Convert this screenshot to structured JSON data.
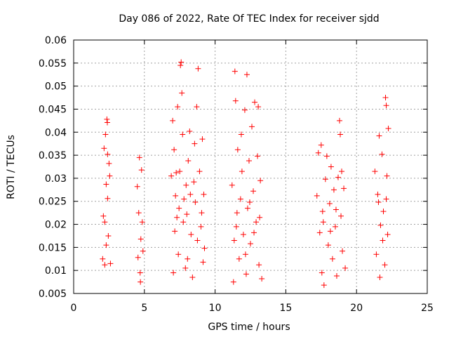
{
  "chart_data": {
    "type": "scatter",
    "title": "Day 086 of 2022, Rate Of TEC Index for receiver sjdd",
    "xlabel": "GPS time / hours",
    "ylabel": "ROTI / TECUs",
    "xlim": [
      0,
      25
    ],
    "ylim": [
      0.005,
      0.06
    ],
    "xticks": [
      0,
      5,
      10,
      15,
      20,
      25
    ],
    "xtick_labels": [
      "0",
      "5",
      "10",
      "15",
      "20",
      "25"
    ],
    "yticks": [
      0.005,
      0.01,
      0.015,
      0.02,
      0.025,
      0.03,
      0.035,
      0.04,
      0.045,
      0.05,
      0.055,
      0.06
    ],
    "ytick_labels": [
      "0.005",
      "0.01",
      "0.015",
      "0.02",
      "0.025",
      "0.03",
      "0.035",
      "0.04",
      "0.045",
      "0.05",
      "0.055",
      "0.06"
    ],
    "grid": true,
    "marker": "+",
    "color": "#ff0000",
    "series": [
      {
        "name": "ROTI",
        "points": [
          {
            "x": 2.05,
            "y": 0.0125
          },
          {
            "x": 2.1,
            "y": 0.0218
          },
          {
            "x": 2.15,
            "y": 0.0365
          },
          {
            "x": 2.2,
            "y": 0.0112
          },
          {
            "x": 2.25,
            "y": 0.0395
          },
          {
            "x": 2.3,
            "y": 0.0287
          },
          {
            "x": 2.35,
            "y": 0.0428
          },
          {
            "x": 2.38,
            "y": 0.0421
          },
          {
            "x": 2.4,
            "y": 0.0256
          },
          {
            "x": 2.45,
            "y": 0.0175
          },
          {
            "x": 2.5,
            "y": 0.0332
          },
          {
            "x": 2.55,
            "y": 0.0305
          },
          {
            "x": 2.6,
            "y": 0.0115
          },
          {
            "x": 2.2,
            "y": 0.0205
          },
          {
            "x": 2.3,
            "y": 0.0155
          },
          {
            "x": 2.4,
            "y": 0.0352
          },
          {
            "x": 4.5,
            "y": 0.0282
          },
          {
            "x": 4.55,
            "y": 0.0128
          },
          {
            "x": 4.6,
            "y": 0.0225
          },
          {
            "x": 4.65,
            "y": 0.0345
          },
          {
            "x": 4.7,
            "y": 0.0095
          },
          {
            "x": 4.72,
            "y": 0.0075
          },
          {
            "x": 4.75,
            "y": 0.0168
          },
          {
            "x": 4.8,
            "y": 0.0318
          },
          {
            "x": 4.85,
            "y": 0.0205
          },
          {
            "x": 4.9,
            "y": 0.0142
          },
          {
            "x": 6.9,
            "y": 0.0305
          },
          {
            "x": 7.0,
            "y": 0.0425
          },
          {
            "x": 7.05,
            "y": 0.0095
          },
          {
            "x": 7.1,
            "y": 0.0362
          },
          {
            "x": 7.15,
            "y": 0.0185
          },
          {
            "x": 7.2,
            "y": 0.0262
          },
          {
            "x": 7.3,
            "y": 0.0215
          },
          {
            "x": 7.4,
            "y": 0.0135
          },
          {
            "x": 7.5,
            "y": 0.0315
          },
          {
            "x": 7.55,
            "y": 0.0545
          },
          {
            "x": 7.6,
            "y": 0.0552
          },
          {
            "x": 7.65,
            "y": 0.0485
          },
          {
            "x": 7.7,
            "y": 0.0395
          },
          {
            "x": 7.8,
            "y": 0.0255
          },
          {
            "x": 7.9,
            "y": 0.0105
          },
          {
            "x": 8.0,
            "y": 0.0222
          },
          {
            "x": 8.1,
            "y": 0.0338
          },
          {
            "x": 8.2,
            "y": 0.0402
          },
          {
            "x": 8.3,
            "y": 0.0178
          },
          {
            "x": 8.4,
            "y": 0.0085
          },
          {
            "x": 8.5,
            "y": 0.0292
          },
          {
            "x": 8.6,
            "y": 0.0248
          },
          {
            "x": 8.7,
            "y": 0.0455
          },
          {
            "x": 8.8,
            "y": 0.0538
          },
          {
            "x": 8.9,
            "y": 0.0315
          },
          {
            "x": 9.0,
            "y": 0.0195
          },
          {
            "x": 9.1,
            "y": 0.0385
          },
          {
            "x": 9.15,
            "y": 0.0118
          },
          {
            "x": 9.2,
            "y": 0.0265
          },
          {
            "x": 9.25,
            "y": 0.0148
          },
          {
            "x": 7.25,
            "y": 0.0312
          },
          {
            "x": 7.75,
            "y": 0.0205
          },
          {
            "x": 8.25,
            "y": 0.0265
          },
          {
            "x": 8.75,
            "y": 0.0165
          },
          {
            "x": 7.35,
            "y": 0.0455
          },
          {
            "x": 8.05,
            "y": 0.0125
          },
          {
            "x": 8.55,
            "y": 0.0375
          },
          {
            "x": 9.05,
            "y": 0.0225
          },
          {
            "x": 7.45,
            "y": 0.0235
          },
          {
            "x": 7.95,
            "y": 0.0285
          },
          {
            "x": 11.2,
            "y": 0.0285
          },
          {
            "x": 11.3,
            "y": 0.0075
          },
          {
            "x": 11.4,
            "y": 0.0532
          },
          {
            "x": 11.45,
            "y": 0.0468
          },
          {
            "x": 11.5,
            "y": 0.0195
          },
          {
            "x": 11.6,
            "y": 0.0362
          },
          {
            "x": 11.7,
            "y": 0.0125
          },
          {
            "x": 11.8,
            "y": 0.0255
          },
          {
            "x": 11.9,
            "y": 0.0315
          },
          {
            "x": 12.0,
            "y": 0.0178
          },
          {
            "x": 12.1,
            "y": 0.0448
          },
          {
            "x": 12.2,
            "y": 0.0092
          },
          {
            "x": 12.25,
            "y": 0.0525
          },
          {
            "x": 12.3,
            "y": 0.0235
          },
          {
            "x": 12.4,
            "y": 0.0338
          },
          {
            "x": 12.5,
            "y": 0.0158
          },
          {
            "x": 12.6,
            "y": 0.0412
          },
          {
            "x": 12.7,
            "y": 0.0272
          },
          {
            "x": 12.8,
            "y": 0.0465
          },
          {
            "x": 12.9,
            "y": 0.0205
          },
          {
            "x": 13.0,
            "y": 0.0348
          },
          {
            "x": 13.05,
            "y": 0.0455
          },
          {
            "x": 13.1,
            "y": 0.0112
          },
          {
            "x": 13.2,
            "y": 0.0295
          },
          {
            "x": 13.3,
            "y": 0.0082
          },
          {
            "x": 11.55,
            "y": 0.0225
          },
          {
            "x": 11.85,
            "y": 0.0395
          },
          {
            "x": 12.15,
            "y": 0.0135
          },
          {
            "x": 12.45,
            "y": 0.0248
          },
          {
            "x": 12.75,
            "y": 0.0182
          },
          {
            "x": 13.15,
            "y": 0.0215
          },
          {
            "x": 11.35,
            "y": 0.0165
          },
          {
            "x": 17.2,
            "y": 0.0262
          },
          {
            "x": 17.3,
            "y": 0.0355
          },
          {
            "x": 17.4,
            "y": 0.0182
          },
          {
            "x": 17.5,
            "y": 0.0372
          },
          {
            "x": 17.55,
            "y": 0.0095
          },
          {
            "x": 17.6,
            "y": 0.0228
          },
          {
            "x": 17.7,
            "y": 0.0068
          },
          {
            "x": 17.8,
            "y": 0.0298
          },
          {
            "x": 17.9,
            "y": 0.0348
          },
          {
            "x": 18.0,
            "y": 0.0155
          },
          {
            "x": 18.1,
            "y": 0.0245
          },
          {
            "x": 18.2,
            "y": 0.0325
          },
          {
            "x": 18.3,
            "y": 0.0125
          },
          {
            "x": 18.4,
            "y": 0.0275
          },
          {
            "x": 18.5,
            "y": 0.0195
          },
          {
            "x": 18.6,
            "y": 0.0088
          },
          {
            "x": 18.7,
            "y": 0.0302
          },
          {
            "x": 18.8,
            "y": 0.0425
          },
          {
            "x": 18.85,
            "y": 0.0395
          },
          {
            "x": 18.9,
            "y": 0.0218
          },
          {
            "x": 19.0,
            "y": 0.0142
          },
          {
            "x": 19.1,
            "y": 0.0278
          },
          {
            "x": 19.2,
            "y": 0.0105
          },
          {
            "x": 17.65,
            "y": 0.0205
          },
          {
            "x": 18.15,
            "y": 0.0185
          },
          {
            "x": 18.55,
            "y": 0.0232
          },
          {
            "x": 18.95,
            "y": 0.0315
          },
          {
            "x": 21.3,
            "y": 0.0315
          },
          {
            "x": 21.4,
            "y": 0.0135
          },
          {
            "x": 21.5,
            "y": 0.0265
          },
          {
            "x": 21.6,
            "y": 0.0392
          },
          {
            "x": 21.65,
            "y": 0.0085
          },
          {
            "x": 21.7,
            "y": 0.0198
          },
          {
            "x": 21.8,
            "y": 0.0352
          },
          {
            "x": 21.9,
            "y": 0.0228
          },
          {
            "x": 22.0,
            "y": 0.0112
          },
          {
            "x": 22.05,
            "y": 0.0475
          },
          {
            "x": 22.1,
            "y": 0.0458
          },
          {
            "x": 22.15,
            "y": 0.0305
          },
          {
            "x": 22.2,
            "y": 0.0178
          },
          {
            "x": 22.25,
            "y": 0.0408
          },
          {
            "x": 21.55,
            "y": 0.0248
          },
          {
            "x": 21.85,
            "y": 0.0165
          },
          {
            "x": 22.1,
            "y": 0.0255
          }
        ]
      }
    ]
  }
}
